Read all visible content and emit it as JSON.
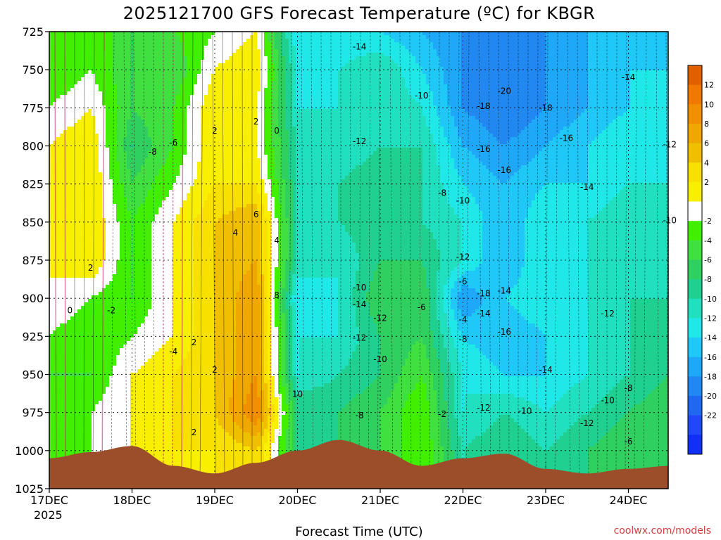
{
  "chart_data": {
    "type": "heatmap",
    "title": "2025121700 GFS Forecast Temperature (ºC) for KBGR",
    "xlabel": "Forecast Time (UTC)",
    "ylabel": "",
    "credit": "coolwx.com/models",
    "x_ticks": [
      "17DEC",
      "18DEC",
      "19DEC",
      "20DEC",
      "21DEC",
      "22DEC",
      "23DEC",
      "24DEC"
    ],
    "x_year": "2025",
    "y_ticks": [
      "725",
      "750",
      "775",
      "800",
      "825",
      "850",
      "875",
      "900",
      "925",
      "950",
      "975",
      "1000",
      "1025"
    ],
    "ylim": [
      1025,
      725
    ],
    "grid": true,
    "colorbar": {
      "tick_labels": [
        "12",
        "10",
        "8",
        "6",
        "4",
        "2",
        "-2",
        "-4",
        "-6",
        "-8",
        "-10",
        "-12",
        "-14",
        "-16",
        "-18",
        "-20",
        "-22"
      ],
      "colors": [
        "#e06000",
        "#f07a00",
        "#f09000",
        "#f0a800",
        "#f0c000",
        "#f8e000",
        "#f8f000",
        "#ffffff",
        "#40f000",
        "#40e040",
        "#30d060",
        "#20d090",
        "#20e0c0",
        "#20e8e8",
        "#20c8f8",
        "#20a8f8",
        "#2088f0",
        "#2068f0",
        "#2048f8",
        "#1030f8"
      ]
    },
    "time_axis": [
      "17DEC",
      "17DEC12",
      "18DEC",
      "18DEC12",
      "19DEC",
      "19DEC12",
      "20DEC",
      "20DEC12",
      "21DEC",
      "21DEC12",
      "22DEC",
      "22DEC12",
      "23DEC",
      "23DEC12",
      "24DEC",
      "24DEC12"
    ],
    "pressure_levels": [
      725,
      750,
      775,
      800,
      825,
      850,
      875,
      900,
      925,
      950,
      975,
      1000
    ],
    "temperature_grid": [
      [
        -4,
        -2,
        -6,
        -4,
        -2,
        0,
        -14,
        -14,
        -14,
        -16,
        -18,
        -20,
        -18,
        -16,
        -14,
        -14
      ],
      [
        -4,
        -2,
        -6,
        -6,
        0,
        2,
        -12,
        -12,
        -10,
        -14,
        -18,
        -20,
        -18,
        -16,
        -14,
        -14
      ],
      [
        -2,
        0,
        -6,
        -4,
        2,
        0,
        -12,
        -12,
        -10,
        -12,
        -18,
        -20,
        -18,
        -16,
        -14,
        -12
      ],
      [
        0,
        2,
        -8,
        -4,
        2,
        0,
        -10,
        -12,
        -10,
        -10,
        -16,
        -18,
        -16,
        -14,
        -12,
        -12
      ],
      [
        0,
        2,
        -6,
        -2,
        2,
        2,
        -10,
        -10,
        -8,
        -10,
        -14,
        -16,
        -14,
        -14,
        -12,
        -12
      ],
      [
        0,
        2,
        -4,
        0,
        4,
        6,
        -10,
        -10,
        -8,
        -10,
        -12,
        -16,
        -12,
        -12,
        -10,
        -10
      ],
      [
        0,
        2,
        -4,
        0,
        4,
        6,
        -10,
        -12,
        -8,
        -8,
        -12,
        -16,
        -12,
        -12,
        -10,
        -10
      ],
      [
        0,
        -2,
        -4,
        0,
        4,
        8,
        -14,
        -12,
        -6,
        -6,
        -18,
        -14,
        -12,
        -12,
        -10,
        -10
      ],
      [
        -2,
        -4,
        -2,
        0,
        4,
        8,
        -12,
        -12,
        -8,
        -6,
        -14,
        -16,
        -14,
        -12,
        -10,
        -8
      ],
      [
        -4,
        -4,
        0,
        2,
        4,
        8,
        -12,
        -10,
        -8,
        -4,
        -12,
        -14,
        -14,
        -12,
        -10,
        -8
      ],
      [
        -4,
        -2,
        0,
        2,
        4,
        10,
        -8,
        -8,
        -6,
        -2,
        -12,
        -10,
        -12,
        -10,
        -8,
        -6
      ],
      [
        -4,
        -2,
        0,
        2,
        2,
        4,
        -8,
        -8,
        -6,
        -2,
        -10,
        -8,
        -10,
        -8,
        -6,
        -6
      ]
    ],
    "ground_pressure": [
      1005,
      1001,
      997,
      1010,
      1015,
      1008,
      1000,
      993,
      1000,
      1010,
      1005,
      1002,
      1012,
      1015,
      1012,
      1010
    ],
    "contour_labels": [
      {
        "x": "17DEC12",
        "p": 880,
        "v": "2"
      },
      {
        "x": "17DEC06",
        "p": 908,
        "v": "0"
      },
      {
        "x": "17DEC18",
        "p": 908,
        "v": "-2"
      },
      {
        "x": "18DEC12",
        "p": 935,
        "v": "-4"
      },
      {
        "x": "18DEC18",
        "p": 929,
        "v": "2"
      },
      {
        "x": "18DEC06",
        "p": 804,
        "v": "-8"
      },
      {
        "x": "18DEC12",
        "p": 798,
        "v": "-6"
      },
      {
        "x": "19DEC",
        "p": 790,
        "v": "2"
      },
      {
        "x": "19DEC",
        "p": 947,
        "v": "2"
      },
      {
        "x": "18DEC18",
        "p": 988,
        "v": "2"
      },
      {
        "x": "19DEC12",
        "p": 784,
        "v": "2"
      },
      {
        "x": "19DEC18",
        "p": 790,
        "v": "0"
      },
      {
        "x": "19DEC06",
        "p": 857,
        "v": "4"
      },
      {
        "x": "19DEC12",
        "p": 845,
        "v": "6"
      },
      {
        "x": "19DEC18",
        "p": 862,
        "v": "4"
      },
      {
        "x": "19DEC18",
        "p": 898,
        "v": "8"
      },
      {
        "x": "20DEC",
        "p": 963,
        "v": "10"
      },
      {
        "x": "20DEC18",
        "p": 735,
        "v": "-14"
      },
      {
        "x": "20DEC18",
        "p": 797,
        "v": "-12"
      },
      {
        "x": "20DEC18",
        "p": 904,
        "v": "-14"
      },
      {
        "x": "20DEC18",
        "p": 926,
        "v": "-12"
      },
      {
        "x": "20DEC18",
        "p": 977,
        "v": "-8"
      },
      {
        "x": "20DEC18",
        "p": 893,
        "v": "-10"
      },
      {
        "x": "21DEC",
        "p": 913,
        "v": "-12"
      },
      {
        "x": "21DEC",
        "p": 940,
        "v": "-10"
      },
      {
        "x": "21DEC12",
        "p": 767,
        "v": "-10"
      },
      {
        "x": "21DEC18",
        "p": 831,
        "v": "-8"
      },
      {
        "x": "21DEC12",
        "p": 906,
        "v": "-6"
      },
      {
        "x": "21DEC18",
        "p": 976,
        "v": "-2"
      },
      {
        "x": "22DEC",
        "p": 836,
        "v": "-10"
      },
      {
        "x": "22DEC",
        "p": 873,
        "v": "-12"
      },
      {
        "x": "22DEC",
        "p": 889,
        "v": "-6"
      },
      {
        "x": "22DEC",
        "p": 914,
        "v": "-4"
      },
      {
        "x": "22DEC",
        "p": 927,
        "v": "-8"
      },
      {
        "x": "22DEC06",
        "p": 774,
        "v": "-18"
      },
      {
        "x": "22DEC06",
        "p": 802,
        "v": "-16"
      },
      {
        "x": "22DEC06",
        "p": 897,
        "v": "-18"
      },
      {
        "x": "22DEC06",
        "p": 910,
        "v": "-14"
      },
      {
        "x": "22DEC12",
        "p": 895,
        "v": "-14"
      },
      {
        "x": "22DEC12",
        "p": 764,
        "v": "-20"
      },
      {
        "x": "22DEC12",
        "p": 816,
        "v": "-16"
      },
      {
        "x": "22DEC12",
        "p": 922,
        "v": "-16"
      },
      {
        "x": "22DEC06",
        "p": 972,
        "v": "-12"
      },
      {
        "x": "22DEC18",
        "p": 974,
        "v": "-10"
      },
      {
        "x": "23DEC",
        "p": 775,
        "v": "-18"
      },
      {
        "x": "23DEC06",
        "p": 795,
        "v": "-16"
      },
      {
        "x": "23DEC12",
        "p": 827,
        "v": "-14"
      },
      {
        "x": "23DEC",
        "p": 947,
        "v": "-14"
      },
      {
        "x": "23DEC12",
        "p": 982,
        "v": "-12"
      },
      {
        "x": "23DEC18",
        "p": 967,
        "v": "-10"
      },
      {
        "x": "23DEC18",
        "p": 910,
        "v": "-12"
      },
      {
        "x": "24DEC",
        "p": 755,
        "v": "-14"
      },
      {
        "x": "24DEC12",
        "p": 799,
        "v": "-12"
      },
      {
        "x": "24DEC12",
        "p": 849,
        "v": "-10"
      },
      {
        "x": "24DEC",
        "p": 959,
        "v": "-8"
      },
      {
        "x": "24DEC",
        "p": 994,
        "v": "-6"
      }
    ]
  }
}
